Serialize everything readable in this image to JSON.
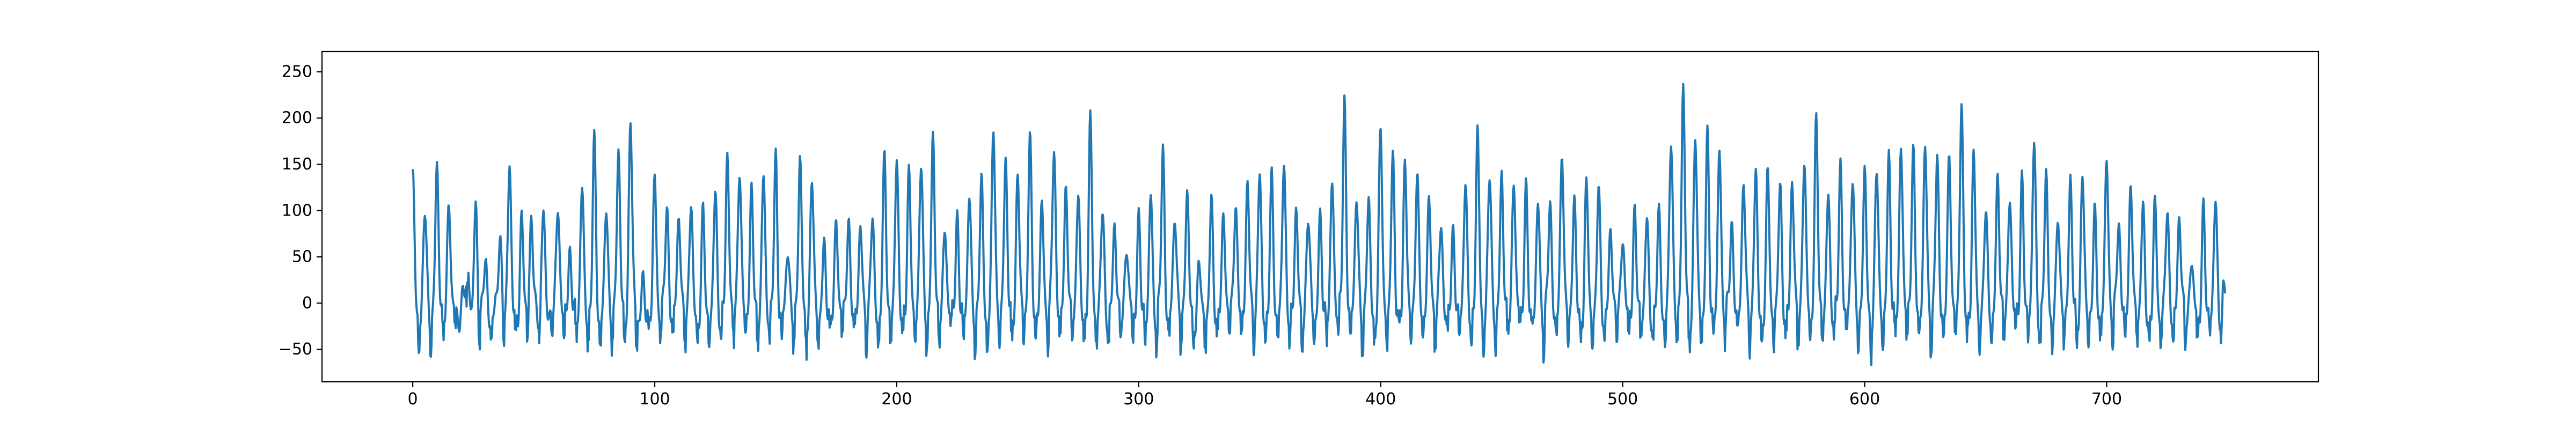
{
  "chart_data": {
    "type": "line",
    "title": "",
    "xlabel": "",
    "ylabel": "",
    "xlim": [
      -37.5,
      787.5
    ],
    "ylim": [
      -85,
      272
    ],
    "xticks": [
      0,
      100,
      200,
      300,
      400,
      500,
      600,
      700
    ],
    "yticks": [
      -50,
      0,
      50,
      100,
      150,
      200,
      250
    ],
    "xtick_labels": [
      "0",
      "100",
      "200",
      "300",
      "400",
      "500",
      "600",
      "700"
    ],
    "ytick_labels": [
      "−50",
      "0",
      "50",
      "100",
      "150",
      "200",
      "250"
    ],
    "grid": false,
    "legend": "none",
    "series": [
      {
        "color": "#1f77b4",
        "x_start": 0,
        "x_end": 749,
        "seed": 20240611,
        "peaks": [
          [
            0,
            150
          ],
          [
            5,
            118
          ],
          [
            10,
            168
          ],
          [
            15,
            134
          ],
          [
            21,
            38
          ],
          [
            23,
            47
          ],
          [
            26,
            122
          ],
          [
            30,
            65
          ],
          [
            36,
            98
          ],
          [
            40,
            168
          ],
          [
            45,
            108
          ],
          [
            49,
            120
          ],
          [
            54,
            125
          ],
          [
            60,
            137
          ],
          [
            65,
            80
          ],
          [
            70,
            145
          ],
          [
            75,
            187
          ],
          [
            80,
            120
          ],
          [
            85,
            188
          ],
          [
            90,
            223
          ],
          [
            95,
            42
          ],
          [
            100,
            155
          ],
          [
            105,
            130
          ],
          [
            110,
            122
          ],
          [
            115,
            125
          ],
          [
            120,
            107
          ],
          [
            125,
            135
          ],
          [
            130,
            182
          ],
          [
            135,
            175
          ],
          [
            140,
            145
          ],
          [
            145,
            158
          ],
          [
            150,
            175
          ],
          [
            155,
            80
          ],
          [
            160,
            173
          ],
          [
            165,
            150
          ],
          [
            170,
            80
          ],
          [
            175,
            112
          ],
          [
            180,
            115
          ],
          [
            185,
            108
          ],
          [
            190,
            113
          ],
          [
            195,
            175
          ],
          [
            200,
            173
          ],
          [
            205,
            160
          ],
          [
            210,
            172
          ],
          [
            215,
            200
          ],
          [
            220,
            108
          ],
          [
            225,
            115
          ],
          [
            230,
            137
          ],
          [
            235,
            148
          ],
          [
            240,
            207
          ],
          [
            245,
            175
          ],
          [
            250,
            160
          ],
          [
            255,
            198
          ],
          [
            260,
            130
          ],
          [
            265,
            195
          ],
          [
            270,
            150
          ],
          [
            275,
            135
          ],
          [
            280,
            205
          ],
          [
            285,
            117
          ],
          [
            290,
            108
          ],
          [
            295,
            90
          ],
          [
            300,
            112
          ],
          [
            305,
            135
          ],
          [
            310,
            185
          ],
          [
            315,
            120
          ],
          [
            320,
            138
          ],
          [
            325,
            55
          ],
          [
            330,
            125
          ],
          [
            335,
            120
          ],
          [
            340,
            138
          ],
          [
            345,
            155
          ],
          [
            350,
            157
          ],
          [
            355,
            150
          ],
          [
            360,
            172
          ],
          [
            365,
            120
          ],
          [
            370,
            115
          ],
          [
            375,
            110
          ],
          [
            380,
            155
          ],
          [
            385,
            243
          ],
          [
            390,
            140
          ],
          [
            395,
            128
          ],
          [
            400,
            202
          ],
          [
            405,
            178
          ],
          [
            410,
            175
          ],
          [
            415,
            162
          ],
          [
            420,
            135
          ],
          [
            425,
            110
          ],
          [
            430,
            100
          ],
          [
            435,
            150
          ],
          [
            440,
            195
          ],
          [
            445,
            158
          ],
          [
            450,
            160
          ],
          [
            455,
            158
          ],
          [
            460,
            145
          ],
          [
            465,
            130
          ],
          [
            470,
            130
          ],
          [
            475,
            185
          ],
          [
            480,
            130
          ],
          [
            485,
            142
          ],
          [
            490,
            140
          ],
          [
            495,
            105
          ],
          [
            500,
            102
          ],
          [
            505,
            122
          ],
          [
            510,
            108
          ],
          [
            515,
            112
          ],
          [
            520,
            200
          ],
          [
            525,
            255
          ],
          [
            530,
            200
          ],
          [
            535,
            195
          ],
          [
            540,
            190
          ],
          [
            545,
            115
          ],
          [
            550,
            160
          ],
          [
            555,
            157
          ],
          [
            560,
            150
          ],
          [
            565,
            145
          ],
          [
            570,
            155
          ],
          [
            575,
            180
          ],
          [
            580,
            218
          ],
          [
            585,
            140
          ],
          [
            590,
            170
          ],
          [
            595,
            160
          ],
          [
            600,
            157
          ],
          [
            605,
            160
          ],
          [
            610,
            175
          ],
          [
            615,
            195
          ],
          [
            620,
            190
          ],
          [
            625,
            195
          ],
          [
            630,
            180
          ],
          [
            635,
            178
          ],
          [
            640,
            230
          ],
          [
            645,
            175
          ],
          [
            650,
            120
          ],
          [
            655,
            160
          ],
          [
            660,
            142
          ],
          [
            665,
            155
          ],
          [
            670,
            195
          ],
          [
            675,
            155
          ],
          [
            680,
            115
          ],
          [
            685,
            152
          ],
          [
            690,
            155
          ],
          [
            695,
            115
          ],
          [
            700,
            182
          ],
          [
            705,
            118
          ],
          [
            710,
            152
          ],
          [
            715,
            120
          ],
          [
            720,
            118
          ],
          [
            725,
            120
          ],
          [
            730,
            118
          ],
          [
            735,
            70
          ],
          [
            740,
            118
          ],
          [
            745,
            132
          ],
          [
            749,
            35
          ]
        ]
      }
    ]
  }
}
